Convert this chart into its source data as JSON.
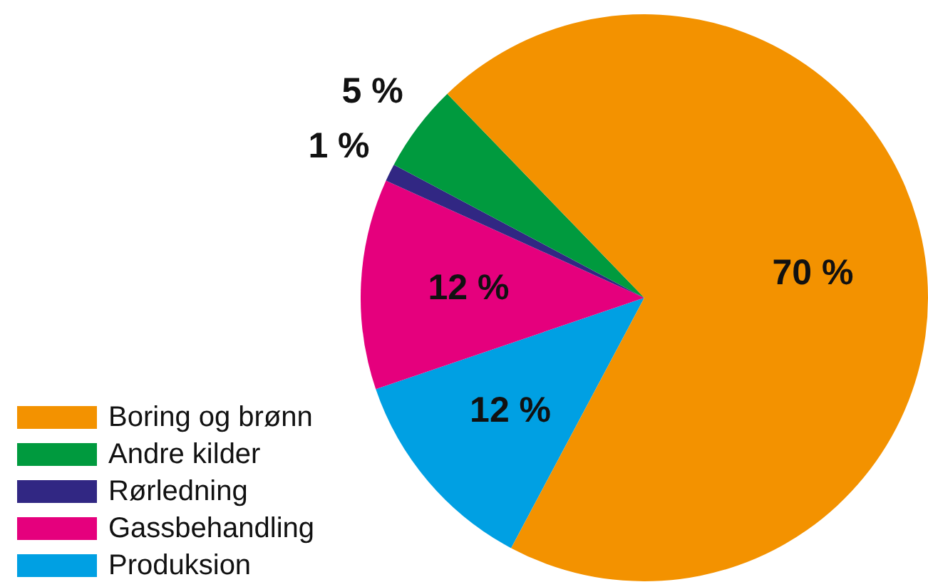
{
  "chart_data": {
    "type": "pie",
    "categories": [
      "Boring og brønn",
      "Andre kilder",
      "Rørledning",
      "Gassbehandling",
      "Produksion"
    ],
    "values": [
      70,
      5,
      1,
      12,
      12
    ],
    "colors": [
      "#f39200",
      "#009a3e",
      "#312783",
      "#e5007d",
      "#00a0e3"
    ],
    "value_labels": [
      "70 %",
      "5 %",
      "1 %",
      "12 %",
      "12 %"
    ],
    "legend": "bottom left"
  }
}
